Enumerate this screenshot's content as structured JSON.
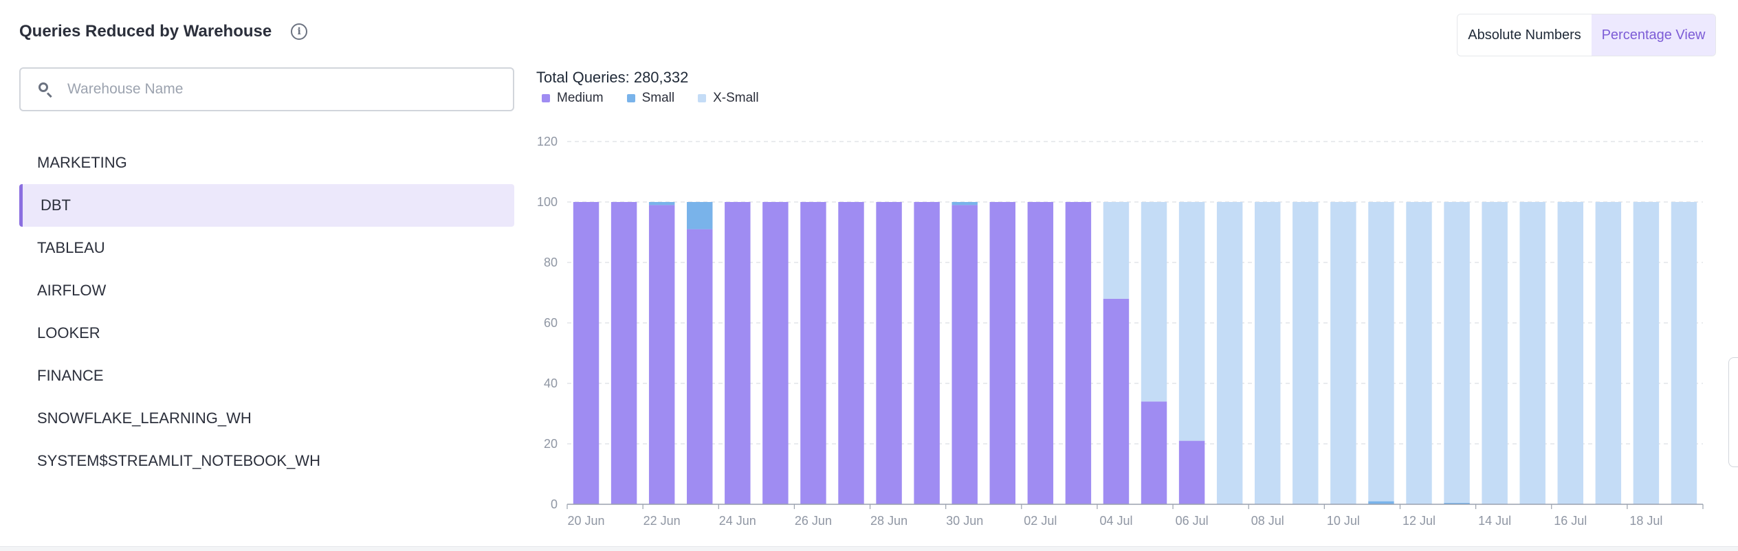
{
  "header": {
    "title": "Queries Reduced by Warehouse",
    "info_icon": "info-icon"
  },
  "view_toggle": {
    "options": [
      "Absolute Numbers",
      "Percentage View"
    ],
    "selected": "Percentage View"
  },
  "search": {
    "placeholder": "Warehouse Name",
    "value": ""
  },
  "warehouses": {
    "items": [
      "MARKETING",
      "DBT",
      "TABLEAU",
      "AIRFLOW",
      "LOOKER",
      "FINANCE",
      "SNOWFLAKE_LEARNING_WH",
      "SYSTEM$STREAMLIT_NOTEBOOK_WH"
    ],
    "selected": "DBT"
  },
  "chart_data": {
    "type": "bar",
    "stacked": true,
    "title": "Total Queries: 280,332",
    "categories": [
      "20 Jun",
      "21 Jun",
      "22 Jun",
      "23 Jun",
      "24 Jun",
      "25 Jun",
      "26 Jun",
      "27 Jun",
      "28 Jun",
      "29 Jun",
      "30 Jun",
      "01 Jul",
      "02 Jul",
      "03 Jul",
      "04 Jul",
      "05 Jul",
      "06 Jul",
      "07 Jul",
      "08 Jul",
      "09 Jul",
      "10 Jul",
      "11 Jul",
      "12 Jul",
      "13 Jul",
      "14 Jul",
      "15 Jul",
      "16 Jul",
      "17 Jul",
      "18 Jul",
      "19 Jul"
    ],
    "x_tick_labels": [
      "20 Jun",
      "22 Jun",
      "24 Jun",
      "26 Jun",
      "28 Jun",
      "30 Jun",
      "02 Jul",
      "04 Jul",
      "06 Jul",
      "08 Jul",
      "10 Jul",
      "12 Jul",
      "14 Jul",
      "16 Jul",
      "18 Jul"
    ],
    "series": [
      {
        "name": "Medium",
        "color": "#9f8cf2",
        "values": [
          100,
          100,
          99,
          91,
          100,
          100,
          100,
          100,
          100,
          100,
          99,
          100,
          100,
          100,
          68,
          34,
          21,
          0,
          0,
          0,
          0,
          0,
          0,
          0,
          0,
          0,
          0,
          0,
          0,
          0
        ]
      },
      {
        "name": "Small",
        "color": "#79b3ea",
        "values": [
          0,
          0,
          1,
          9,
          0,
          0,
          0,
          0,
          0,
          0,
          1,
          0,
          0,
          0,
          0,
          0,
          0,
          0,
          0,
          0,
          0,
          1,
          0,
          0.5,
          0,
          0,
          0,
          0,
          0,
          0
        ]
      },
      {
        "name": "X-Small",
        "color": "#c4dcf6",
        "values": [
          0,
          0,
          0,
          0,
          0,
          0,
          0,
          0,
          0,
          0,
          0,
          0,
          0,
          0,
          32,
          66,
          79,
          100,
          100,
          100,
          100,
          99,
          100,
          99.5,
          100,
          100,
          100,
          100,
          100,
          100
        ]
      }
    ],
    "ylim": [
      0,
      120
    ],
    "y_ticks": [
      0,
      20,
      40,
      60,
      80,
      100,
      120
    ],
    "grid": true,
    "legend_position": "top-left"
  }
}
